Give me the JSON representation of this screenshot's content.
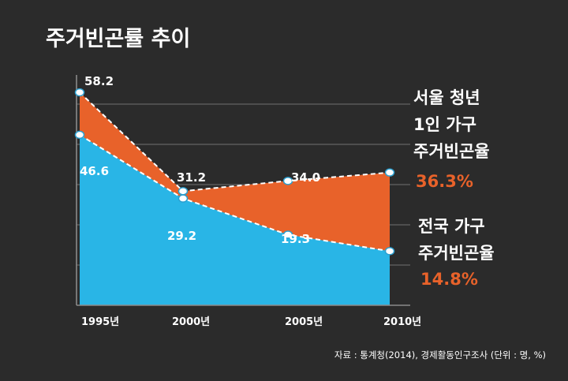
{
  "chart_data": {
    "type": "area",
    "title": "주거빈곤률 추이",
    "categories": [
      "1995년",
      "2000년",
      "2005년",
      "2010년"
    ],
    "x": [
      1995,
      2000,
      2005,
      2010
    ],
    "ylim": [
      0,
      70
    ],
    "grid": true,
    "series": [
      {
        "name": "서울 청년 1인 가구 주거빈곤율",
        "color": "#e8622a",
        "values": [
          58.2,
          31.2,
          34.0,
          36.3
        ],
        "data_labels": [
          "58.2",
          "31.2",
          "34.0",
          ""
        ]
      },
      {
        "name": "전국 가구 주거빈곤율",
        "color": "#29b5e6",
        "values": [
          46.6,
          29.2,
          19.3,
          14.8
        ],
        "data_labels": [
          "46.6",
          "29.2",
          "19.3",
          ""
        ]
      }
    ],
    "legend": [
      {
        "lines": [
          "서울 청년",
          "1인 가구",
          "주거빈곤율"
        ],
        "value": "36.3%"
      },
      {
        "lines": [
          "전국 가구",
          "주거빈곤율"
        ],
        "value": "14.8%"
      }
    ],
    "source": "자료 : 통계청(2014), 경제활동인구조사 (단위 : 명, %)"
  }
}
